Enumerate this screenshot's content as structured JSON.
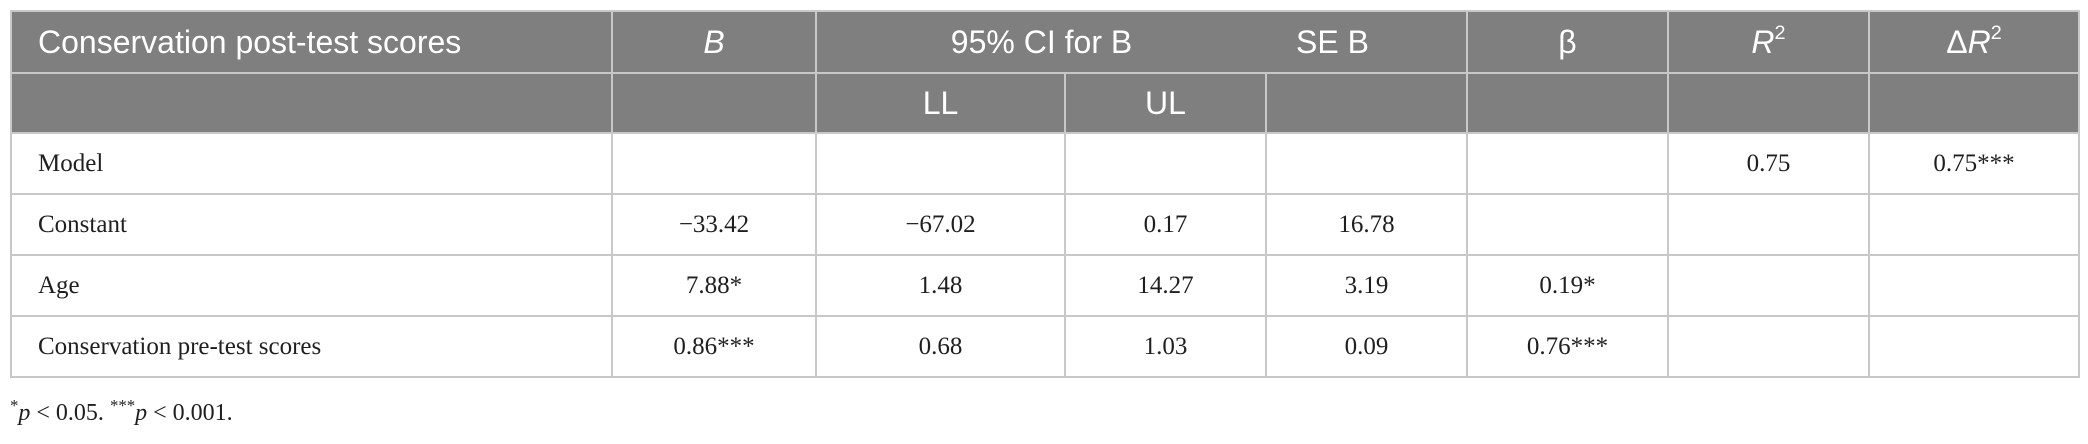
{
  "header": {
    "row1": {
      "col0": "Conservation post-test scores",
      "col1": "B",
      "col2": "95% CI for B",
      "col4": "SE B",
      "col5": "β",
      "col6_base": "R",
      "col6_sup": "2",
      "col7_prefix": "Δ",
      "col7_base": "R",
      "col7_sup": "2"
    },
    "row2": {
      "ll": "LL",
      "ul": "UL"
    }
  },
  "rows": [
    {
      "label": "Model",
      "b": "",
      "ll": "",
      "ul": "",
      "se": "",
      "beta": "",
      "r2": "0.75",
      "dr2": "0.75***"
    },
    {
      "label": "Constant",
      "b": "−33.42",
      "ll": "−67.02",
      "ul": "0.17",
      "se": "16.78",
      "beta": "",
      "r2": "",
      "dr2": ""
    },
    {
      "label": "Age",
      "b": "7.88*",
      "ll": "1.48",
      "ul": "14.27",
      "se": "3.19",
      "beta": "0.19*",
      "r2": "",
      "dr2": ""
    },
    {
      "label": "Conservation pre-test scores",
      "b": "0.86***",
      "ll": "0.68",
      "ul": "1.03",
      "se": "0.09",
      "beta": "0.76***",
      "r2": "",
      "dr2": ""
    }
  ],
  "footnote": {
    "star1": "*",
    "p1": "p",
    "text1": " < 0.05. ",
    "star2": "***",
    "p2": "p",
    "text2": " < 0.001."
  },
  "colors": {
    "header_bg": "#7f7f7f",
    "header_text": "#ffffff",
    "grid": "#c8c8c8"
  }
}
